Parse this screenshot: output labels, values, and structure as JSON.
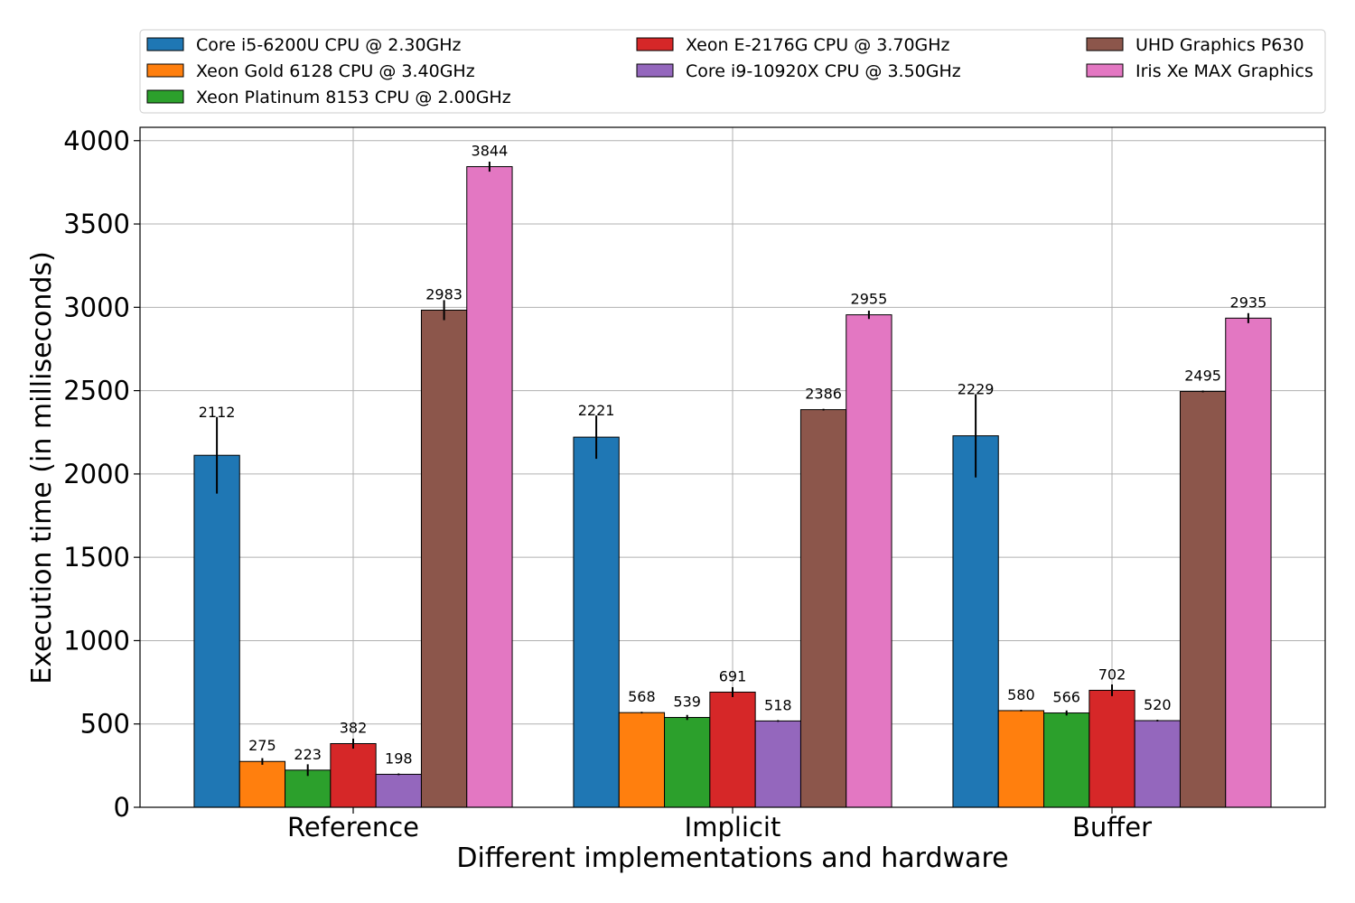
{
  "chart_data": {
    "type": "bar",
    "title": "",
    "xlabel": "Different implementations and hardware",
    "ylabel": "Execution time (in milliseconds)",
    "ylim": [
      0,
      4080
    ],
    "yticks": [
      0,
      500,
      1000,
      1500,
      2000,
      2500,
      3000,
      3500,
      4000
    ],
    "grid": true,
    "legend_position": "top",
    "categories": [
      "Reference",
      "Implicit",
      "Buffer"
    ],
    "series": [
      {
        "name": "Core i5-6200U CPU @ 2.30GHz",
        "color": "#1f77b4",
        "values": [
          2112,
          2221,
          2229
        ],
        "errors": [
          230,
          130,
          250
        ]
      },
      {
        "name": "Xeon Gold 6128 CPU @ 3.40GHz",
        "color": "#ff7f0e",
        "values": [
          275,
          568,
          580
        ],
        "errors": [
          20,
          5,
          5
        ]
      },
      {
        "name": "Xeon Platinum 8153 CPU @ 2.00GHz",
        "color": "#2ca02c",
        "values": [
          223,
          539,
          566
        ],
        "errors": [
          35,
          15,
          15
        ]
      },
      {
        "name": "Xeon E-2176G CPU @ 3.70GHz",
        "color": "#d62728",
        "values": [
          382,
          691,
          702
        ],
        "errors": [
          30,
          30,
          35
        ]
      },
      {
        "name": "Core i9-10920X CPU @ 3.50GHz",
        "color": "#9467bd",
        "values": [
          198,
          518,
          520
        ],
        "errors": [
          5,
          5,
          5
        ]
      },
      {
        "name": "UHD Graphics P630",
        "color": "#8c564b",
        "values": [
          2983,
          2386,
          2495
        ],
        "errors": [
          60,
          5,
          5
        ]
      },
      {
        "name": "Iris Xe MAX Graphics",
        "color": "#e377c2",
        "values": [
          3844,
          2955,
          2935
        ],
        "errors": [
          30,
          25,
          30
        ]
      }
    ]
  }
}
